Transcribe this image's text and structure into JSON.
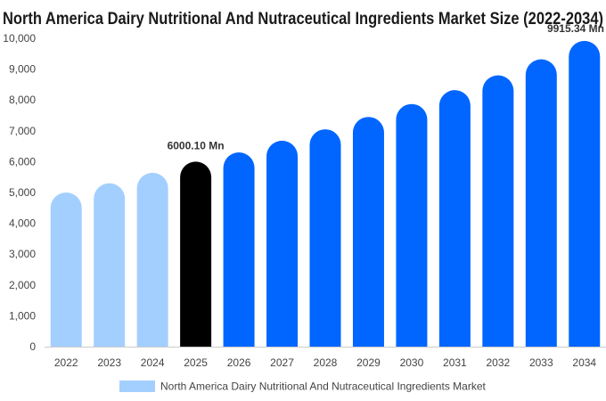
{
  "chart_data": {
    "type": "bar",
    "title": "North America Dairy Nutritional And Nutraceutical Ingredients Market Size (2022-2034)",
    "xlabel": "",
    "ylabel": "",
    "categories": [
      "2022",
      "2023",
      "2024",
      "2025",
      "2026",
      "2027",
      "2028",
      "2029",
      "2030",
      "2031",
      "2032",
      "2033",
      "2034"
    ],
    "series": [
      {
        "name": "North America Dairy Nutritional And Nutraceutical Ingredients Market",
        "values": [
          5000,
          5300,
          5640,
          6000.1,
          6300,
          6680,
          7050,
          7450,
          7870,
          8320,
          8800,
          9320,
          9915.34
        ]
      }
    ],
    "ylim": [
      0,
      10000
    ],
    "yticks": [
      "0",
      "1,000",
      "2,000",
      "3,000",
      "4,000",
      "5,000",
      "6,000",
      "7,000",
      "8,000",
      "9,000",
      "10,000"
    ],
    "annotations": [
      {
        "category": "2025",
        "text": "6000.10 Mn"
      },
      {
        "category": "2034",
        "text": "9915.34 Mn"
      }
    ],
    "colors": {
      "historical": "#a3cfff",
      "base_year": "#000000",
      "forecast": "#0066ff",
      "axis": "#cccccc"
    },
    "historical_count": 3,
    "base_index": 3,
    "grid": false,
    "legend": "bottom-center"
  }
}
